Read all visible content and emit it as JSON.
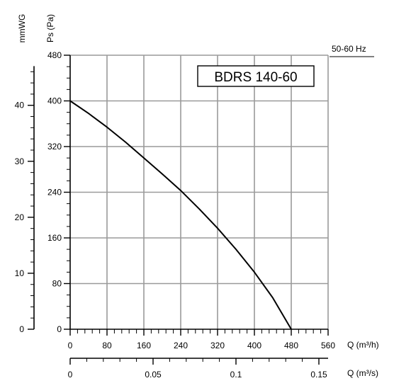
{
  "chart_data": {
    "type": "line",
    "title": "BDRS 140-60",
    "frequency_label": "50-60 Hz",
    "ylabel_primary": "Ps (Pa)",
    "ylabel_secondary": "mmWG",
    "xlabel_primary": "Q (m³/h)",
    "xlabel_secondary": "Q (m³/s)",
    "xlim": [
      0,
      560
    ],
    "ylim": [
      0,
      480
    ],
    "x_ticks": [
      "0",
      "80",
      "160",
      "240",
      "320",
      "400",
      "480",
      "560"
    ],
    "y_ticks": [
      "0",
      "80",
      "160",
      "240",
      "320",
      "400",
      "480"
    ],
    "y_secondary_ticks": [
      "0",
      "10",
      "20",
      "30",
      "40"
    ],
    "x_secondary_ticks": [
      "0",
      "0.05",
      "0.1",
      "0.15"
    ],
    "grid": true,
    "series": [
      {
        "x": [
          0,
          40,
          80,
          120,
          160,
          200,
          240,
          280,
          320,
          360,
          400,
          440,
          480
        ],
        "y": [
          400,
          378,
          354,
          328,
          300,
          272,
          243,
          211,
          177,
          140,
          100,
          55,
          0
        ]
      }
    ],
    "colors": {
      "line": "#000000",
      "grid": "#9a9a9a",
      "axis": "#000000"
    }
  }
}
